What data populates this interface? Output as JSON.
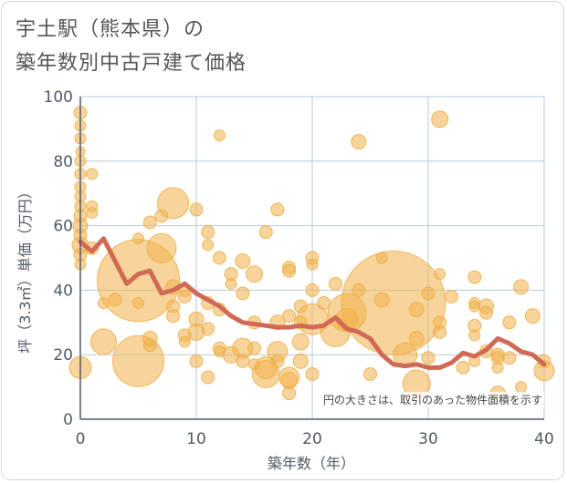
{
  "chart_data": {
    "type": "scatter",
    "title": "宇土駅（熊本県）の\n築年数別中古戸建て価格",
    "xlabel": "築年数（年）",
    "ylabel": "坪（3.3㎡）単価（万円）",
    "xlim": [
      0,
      40
    ],
    "ylim": [
      0,
      100
    ],
    "xticks": [
      0,
      10,
      20,
      30,
      40
    ],
    "yticks": [
      0,
      20,
      40,
      60,
      80,
      100
    ],
    "grid": true,
    "note": "円の大きさは、取引のあった物件面積を示す",
    "colors": {
      "bubble": "#f0b04a",
      "line": "#d06a55",
      "grid": "#b9c9d9",
      "axis": "#505a66"
    },
    "trend_line": {
      "x": [
        0,
        1,
        2,
        3,
        4,
        5,
        6,
        7,
        8,
        9,
        10,
        11,
        12,
        13,
        14,
        15,
        16,
        17,
        18,
        19,
        20,
        21,
        22,
        23,
        24,
        25,
        26,
        27,
        28,
        29,
        30,
        31,
        32,
        33,
        34,
        35,
        36,
        37,
        38,
        39,
        40
      ],
      "y": [
        55,
        52,
        56,
        49,
        42,
        45,
        46,
        39,
        40,
        42,
        39,
        37,
        35,
        32,
        30,
        29.5,
        29,
        28.5,
        28.5,
        29,
        28.5,
        29,
        31.5,
        28,
        27,
        25,
        20,
        17,
        16.5,
        17,
        16,
        16,
        17.5,
        20.5,
        19.5,
        21.5,
        25,
        23.5,
        21,
        20,
        17
      ]
    },
    "bubbles": [
      {
        "x": 0,
        "y": 95,
        "r": 7
      },
      {
        "x": 0,
        "y": 91,
        "r": 6
      },
      {
        "x": 0,
        "y": 87,
        "r": 6
      },
      {
        "x": 0,
        "y": 83,
        "r": 5
      },
      {
        "x": 0,
        "y": 80,
        "r": 6
      },
      {
        "x": 0,
        "y": 76,
        "r": 6
      },
      {
        "x": 0,
        "y": 72,
        "r": 6
      },
      {
        "x": 0,
        "y": 69,
        "r": 6
      },
      {
        "x": 0,
        "y": 66,
        "r": 6
      },
      {
        "x": 0,
        "y": 63,
        "r": 7
      },
      {
        "x": 0,
        "y": 60,
        "r": 8
      },
      {
        "x": 0,
        "y": 57,
        "r": 7
      },
      {
        "x": 0,
        "y": 54,
        "r": 9
      },
      {
        "x": 0,
        "y": 51,
        "r": 7
      },
      {
        "x": 0,
        "y": 48,
        "r": 6
      },
      {
        "x": 0,
        "y": 16,
        "r": 12
      },
      {
        "x": 1,
        "y": 76,
        "r": 6
      },
      {
        "x": 1,
        "y": 66,
        "r": 6
      },
      {
        "x": 1,
        "y": 64,
        "r": 6
      },
      {
        "x": 1,
        "y": 53,
        "r": 7
      },
      {
        "x": 2,
        "y": 36,
        "r": 6
      },
      {
        "x": 2,
        "y": 24,
        "r": 14
      },
      {
        "x": 3,
        "y": 37,
        "r": 7
      },
      {
        "x": 5,
        "y": 43,
        "r": 45
      },
      {
        "x": 5,
        "y": 18,
        "r": 28
      },
      {
        "x": 5,
        "y": 56,
        "r": 6
      },
      {
        "x": 5,
        "y": 36,
        "r": 6
      },
      {
        "x": 6,
        "y": 61,
        "r": 7
      },
      {
        "x": 6,
        "y": 25,
        "r": 8
      },
      {
        "x": 6,
        "y": 23,
        "r": 7
      },
      {
        "x": 7,
        "y": 63,
        "r": 7
      },
      {
        "x": 7,
        "y": 53,
        "r": 16
      },
      {
        "x": 8,
        "y": 67,
        "r": 17
      },
      {
        "x": 8,
        "y": 41,
        "r": 8
      },
      {
        "x": 8,
        "y": 35,
        "r": 7
      },
      {
        "x": 8,
        "y": 32,
        "r": 7
      },
      {
        "x": 9,
        "y": 40,
        "r": 7
      },
      {
        "x": 9,
        "y": 38,
        "r": 7
      },
      {
        "x": 9,
        "y": 26,
        "r": 7
      },
      {
        "x": 9,
        "y": 24,
        "r": 6
      },
      {
        "x": 10,
        "y": 65,
        "r": 7
      },
      {
        "x": 10,
        "y": 31,
        "r": 8
      },
      {
        "x": 10,
        "y": 27,
        "r": 9
      },
      {
        "x": 10,
        "y": 18,
        "r": 7
      },
      {
        "x": 11,
        "y": 58,
        "r": 7
      },
      {
        "x": 11,
        "y": 54,
        "r": 6
      },
      {
        "x": 11,
        "y": 36,
        "r": 7
      },
      {
        "x": 11,
        "y": 28,
        "r": 7
      },
      {
        "x": 11,
        "y": 13,
        "r": 7
      },
      {
        "x": 12,
        "y": 88,
        "r": 6
      },
      {
        "x": 12,
        "y": 50,
        "r": 7
      },
      {
        "x": 12,
        "y": 34,
        "r": 7
      },
      {
        "x": 12,
        "y": 22,
        "r": 7
      },
      {
        "x": 12,
        "y": 21,
        "r": 6
      },
      {
        "x": 13,
        "y": 45,
        "r": 7
      },
      {
        "x": 13,
        "y": 42,
        "r": 6
      },
      {
        "x": 13,
        "y": 20,
        "r": 9
      },
      {
        "x": 14,
        "y": 49,
        "r": 8
      },
      {
        "x": 14,
        "y": 39,
        "r": 7
      },
      {
        "x": 14,
        "y": 22,
        "r": 11
      },
      {
        "x": 14,
        "y": 18,
        "r": 7
      },
      {
        "x": 15,
        "y": 45,
        "r": 9
      },
      {
        "x": 15,
        "y": 30,
        "r": 7
      },
      {
        "x": 15,
        "y": 22,
        "r": 7
      },
      {
        "x": 15,
        "y": 17,
        "r": 6
      },
      {
        "x": 16,
        "y": 58,
        "r": 7
      },
      {
        "x": 16,
        "y": 16,
        "r": 12
      },
      {
        "x": 16,
        "y": 14,
        "r": 15
      },
      {
        "x": 17,
        "y": 65,
        "r": 7
      },
      {
        "x": 17,
        "y": 30,
        "r": 8
      },
      {
        "x": 17,
        "y": 21,
        "r": 11
      },
      {
        "x": 17,
        "y": 18,
        "r": 7
      },
      {
        "x": 18,
        "y": 47,
        "r": 7
      },
      {
        "x": 18,
        "y": 46,
        "r": 7
      },
      {
        "x": 18,
        "y": 32,
        "r": 7
      },
      {
        "x": 18,
        "y": 13,
        "r": 11
      },
      {
        "x": 18,
        "y": 12,
        "r": 9
      },
      {
        "x": 18,
        "y": 8,
        "r": 7
      },
      {
        "x": 19,
        "y": 35,
        "r": 7
      },
      {
        "x": 19,
        "y": 30,
        "r": 7
      },
      {
        "x": 19,
        "y": 24,
        "r": 9
      },
      {
        "x": 19,
        "y": 18,
        "r": 8
      },
      {
        "x": 20,
        "y": 50,
        "r": 7
      },
      {
        "x": 20,
        "y": 48,
        "r": 6
      },
      {
        "x": 20,
        "y": 40,
        "r": 7
      },
      {
        "x": 20,
        "y": 31,
        "r": 17
      },
      {
        "x": 20,
        "y": 14,
        "r": 7
      },
      {
        "x": 21,
        "y": 36,
        "r": 7
      },
      {
        "x": 22,
        "y": 42,
        "r": 7
      },
      {
        "x": 22,
        "y": 27,
        "r": 16
      },
      {
        "x": 23,
        "y": 33,
        "r": 21
      },
      {
        "x": 23,
        "y": 31,
        "r": 12
      },
      {
        "x": 24,
        "y": 86,
        "r": 8
      },
      {
        "x": 24,
        "y": 40,
        "r": 7
      },
      {
        "x": 25,
        "y": 14,
        "r": 7
      },
      {
        "x": 26,
        "y": 50,
        "r": 6
      },
      {
        "x": 26,
        "y": 37,
        "r": 8
      },
      {
        "x": 27,
        "y": 36,
        "r": 57
      },
      {
        "x": 28,
        "y": 20,
        "r": 13
      },
      {
        "x": 29,
        "y": 34,
        "r": 8
      },
      {
        "x": 29,
        "y": 25,
        "r": 8
      },
      {
        "x": 29,
        "y": 11,
        "r": 15
      },
      {
        "x": 30,
        "y": 39,
        "r": 7
      },
      {
        "x": 30,
        "y": 19,
        "r": 7
      },
      {
        "x": 31,
        "y": 93,
        "r": 9
      },
      {
        "x": 31,
        "y": 45,
        "r": 6
      },
      {
        "x": 31,
        "y": 30,
        "r": 7
      },
      {
        "x": 31,
        "y": 27,
        "r": 7
      },
      {
        "x": 32,
        "y": 38,
        "r": 7
      },
      {
        "x": 33,
        "y": 16,
        "r": 7
      },
      {
        "x": 34,
        "y": 44,
        "r": 7
      },
      {
        "x": 34,
        "y": 36,
        "r": 6
      },
      {
        "x": 34,
        "y": 35,
        "r": 6
      },
      {
        "x": 34,
        "y": 29,
        "r": 7
      },
      {
        "x": 34,
        "y": 26,
        "r": 6
      },
      {
        "x": 34,
        "y": 18,
        "r": 6
      },
      {
        "x": 35,
        "y": 35,
        "r": 8
      },
      {
        "x": 35,
        "y": 33,
        "r": 7
      },
      {
        "x": 35,
        "y": 21,
        "r": 7
      },
      {
        "x": 36,
        "y": 20,
        "r": 7
      },
      {
        "x": 36,
        "y": 19,
        "r": 7
      },
      {
        "x": 36,
        "y": 16,
        "r": 6
      },
      {
        "x": 36,
        "y": 8,
        "r": 8
      },
      {
        "x": 37,
        "y": 30,
        "r": 7
      },
      {
        "x": 37,
        "y": 19,
        "r": 7
      },
      {
        "x": 38,
        "y": 41,
        "r": 8
      },
      {
        "x": 38,
        "y": 10,
        "r": 6
      },
      {
        "x": 39,
        "y": 32,
        "r": 8
      },
      {
        "x": 40,
        "y": 18,
        "r": 7
      },
      {
        "x": 40,
        "y": 15,
        "r": 11
      }
    ]
  }
}
